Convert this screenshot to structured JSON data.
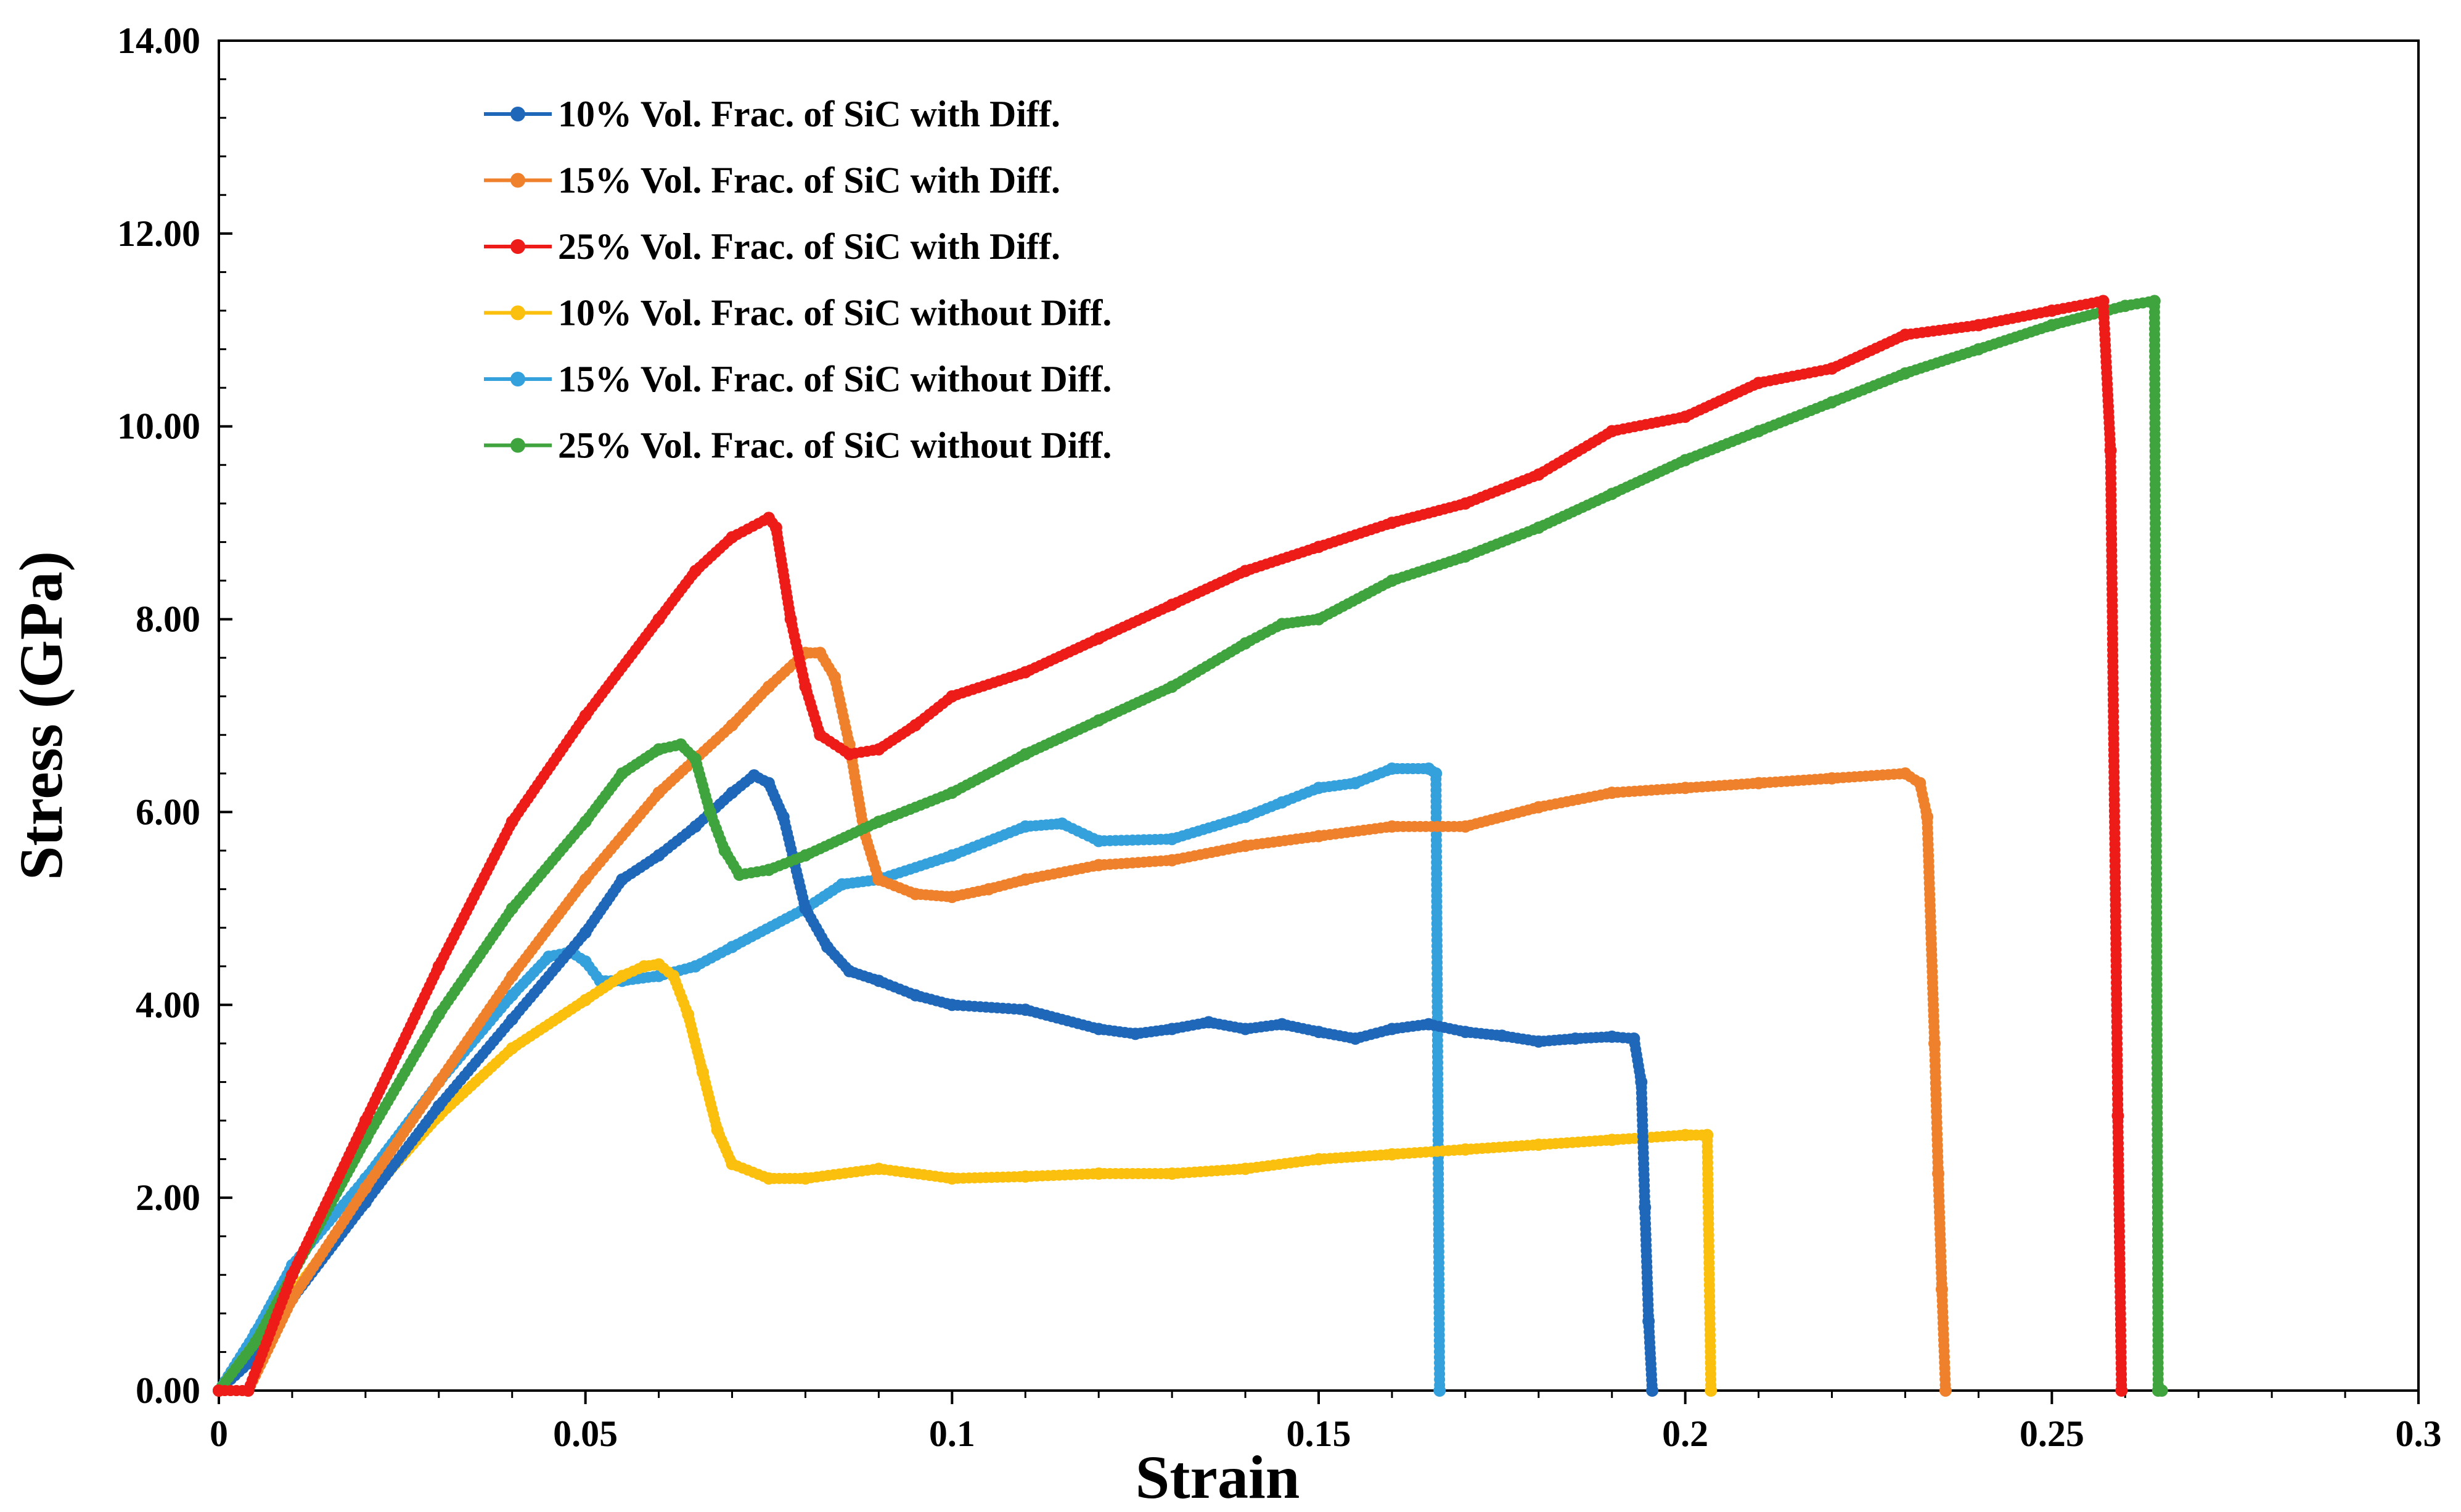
{
  "chart_data": {
    "type": "line",
    "title": "",
    "xlabel": "Strain",
    "ylabel": "Stress (GPa)",
    "xlim": [
      0,
      0.3
    ],
    "ylim": [
      0,
      14
    ],
    "x_ticks": [
      0,
      0.05,
      0.1,
      0.15,
      0.2,
      0.25,
      0.3
    ],
    "x_tick_labels": [
      "0",
      "0.05",
      "0.1",
      "0.15",
      "0.2",
      "0.25",
      "0.3"
    ],
    "y_ticks": [
      0,
      2,
      4,
      6,
      8,
      10,
      12,
      14
    ],
    "y_tick_labels": [
      "0.00",
      "2.00",
      "4.00",
      "6.00",
      "8.00",
      "10.00",
      "12.00",
      "14.00"
    ],
    "legend_position": "top-left",
    "series": [
      {
        "name": "10% Vol. Frac. of SiC with Diff.",
        "color": "#1f67b9",
        "points": [
          [
            0,
            0
          ],
          [
            0.005,
            0.35
          ],
          [
            0.01,
            0.95
          ],
          [
            0.02,
            1.95
          ],
          [
            0.03,
            2.95
          ],
          [
            0.04,
            3.85
          ],
          [
            0.05,
            4.75
          ],
          [
            0.055,
            5.3
          ],
          [
            0.06,
            5.55
          ],
          [
            0.065,
            5.85
          ],
          [
            0.07,
            6.2
          ],
          [
            0.073,
            6.38
          ],
          [
            0.075,
            6.3
          ],
          [
            0.077,
            5.95
          ],
          [
            0.08,
            5.0
          ],
          [
            0.083,
            4.6
          ],
          [
            0.086,
            4.35
          ],
          [
            0.09,
            4.25
          ],
          [
            0.095,
            4.1
          ],
          [
            0.1,
            4.0
          ],
          [
            0.11,
            3.95
          ],
          [
            0.12,
            3.75
          ],
          [
            0.125,
            3.7
          ],
          [
            0.13,
            3.75
          ],
          [
            0.135,
            3.82
          ],
          [
            0.14,
            3.75
          ],
          [
            0.145,
            3.8
          ],
          [
            0.15,
            3.72
          ],
          [
            0.155,
            3.65
          ],
          [
            0.16,
            3.75
          ],
          [
            0.165,
            3.8
          ],
          [
            0.17,
            3.72
          ],
          [
            0.175,
            3.68
          ],
          [
            0.18,
            3.62
          ],
          [
            0.185,
            3.65
          ],
          [
            0.19,
            3.67
          ],
          [
            0.193,
            3.65
          ],
          [
            0.194,
            3.2
          ],
          [
            0.1945,
            1.9
          ],
          [
            0.195,
            0.72
          ],
          [
            0.1955,
            0
          ]
        ]
      },
      {
        "name": "15% Vol. Frac. of SiC with Diff.",
        "color": "#f0812c",
        "points": [
          [
            0,
            0
          ],
          [
            0.004,
            0.0
          ],
          [
            0.01,
            0.95
          ],
          [
            0.02,
            2.1
          ],
          [
            0.03,
            3.2
          ],
          [
            0.04,
            4.3
          ],
          [
            0.05,
            5.3
          ],
          [
            0.06,
            6.2
          ],
          [
            0.07,
            6.9
          ],
          [
            0.075,
            7.3
          ],
          [
            0.08,
            7.65
          ],
          [
            0.082,
            7.65
          ],
          [
            0.084,
            7.4
          ],
          [
            0.086,
            6.7
          ],
          [
            0.088,
            5.8
          ],
          [
            0.09,
            5.3
          ],
          [
            0.095,
            5.15
          ],
          [
            0.1,
            5.12
          ],
          [
            0.105,
            5.2
          ],
          [
            0.11,
            5.3
          ],
          [
            0.12,
            5.45
          ],
          [
            0.13,
            5.5
          ],
          [
            0.14,
            5.65
          ],
          [
            0.15,
            5.75
          ],
          [
            0.16,
            5.85
          ],
          [
            0.17,
            5.85
          ],
          [
            0.18,
            6.05
          ],
          [
            0.19,
            6.2
          ],
          [
            0.2,
            6.25
          ],
          [
            0.21,
            6.3
          ],
          [
            0.22,
            6.35
          ],
          [
            0.23,
            6.4
          ],
          [
            0.232,
            6.3
          ],
          [
            0.233,
            5.95
          ],
          [
            0.234,
            3.6
          ],
          [
            0.2345,
            2.25
          ],
          [
            0.235,
            1.05
          ],
          [
            0.2355,
            0
          ]
        ]
      },
      {
        "name": "25% Vol. Frac. of SiC with Diff.",
        "color": "#ee1c18",
        "points": [
          [
            0,
            0
          ],
          [
            0.004,
            0.0
          ],
          [
            0.01,
            1.2
          ],
          [
            0.02,
            2.8
          ],
          [
            0.03,
            4.4
          ],
          [
            0.04,
            5.9
          ],
          [
            0.05,
            7.0
          ],
          [
            0.06,
            8.0
          ],
          [
            0.065,
            8.5
          ],
          [
            0.07,
            8.85
          ],
          [
            0.075,
            9.05
          ],
          [
            0.076,
            8.95
          ],
          [
            0.078,
            8.0
          ],
          [
            0.08,
            7.3
          ],
          [
            0.082,
            6.8
          ],
          [
            0.086,
            6.6
          ],
          [
            0.09,
            6.65
          ],
          [
            0.095,
            6.9
          ],
          [
            0.1,
            7.2
          ],
          [
            0.11,
            7.45
          ],
          [
            0.12,
            7.8
          ],
          [
            0.13,
            8.15
          ],
          [
            0.14,
            8.5
          ],
          [
            0.15,
            8.75
          ],
          [
            0.16,
            9.0
          ],
          [
            0.17,
            9.2
          ],
          [
            0.18,
            9.5
          ],
          [
            0.19,
            9.95
          ],
          [
            0.2,
            10.1
          ],
          [
            0.21,
            10.45
          ],
          [
            0.22,
            10.6
          ],
          [
            0.23,
            10.95
          ],
          [
            0.24,
            11.05
          ],
          [
            0.25,
            11.2
          ],
          [
            0.257,
            11.3
          ],
          [
            0.258,
            9.75
          ],
          [
            0.259,
            2.85
          ],
          [
            0.2595,
            0
          ]
        ]
      },
      {
        "name": "10% Vol. Frac. of SiC without Diff.",
        "color": "#fbbf0e",
        "points": [
          [
            0,
            0
          ],
          [
            0.01,
            1.0
          ],
          [
            0.02,
            2.0
          ],
          [
            0.03,
            2.85
          ],
          [
            0.04,
            3.55
          ],
          [
            0.05,
            4.05
          ],
          [
            0.055,
            4.3
          ],
          [
            0.058,
            4.4
          ],
          [
            0.06,
            4.42
          ],
          [
            0.062,
            4.3
          ],
          [
            0.064,
            3.9
          ],
          [
            0.066,
            3.3
          ],
          [
            0.068,
            2.7
          ],
          [
            0.07,
            2.35
          ],
          [
            0.075,
            2.2
          ],
          [
            0.08,
            2.2
          ],
          [
            0.09,
            2.3
          ],
          [
            0.1,
            2.2
          ],
          [
            0.11,
            2.22
          ],
          [
            0.12,
            2.25
          ],
          [
            0.13,
            2.25
          ],
          [
            0.14,
            2.3
          ],
          [
            0.15,
            2.4
          ],
          [
            0.16,
            2.45
          ],
          [
            0.17,
            2.5
          ],
          [
            0.18,
            2.55
          ],
          [
            0.19,
            2.6
          ],
          [
            0.2,
            2.65
          ],
          [
            0.203,
            2.65
          ],
          [
            0.2035,
            0
          ]
        ]
      },
      {
        "name": "15% Vol. Frac. of SiC without Diff.",
        "color": "#34a0dc",
        "points": [
          [
            0,
            0
          ],
          [
            0.005,
            0.6
          ],
          [
            0.01,
            1.3
          ],
          [
            0.02,
            2.2
          ],
          [
            0.03,
            3.2
          ],
          [
            0.04,
            4.1
          ],
          [
            0.045,
            4.5
          ],
          [
            0.048,
            4.55
          ],
          [
            0.05,
            4.45
          ],
          [
            0.052,
            4.25
          ],
          [
            0.055,
            4.25
          ],
          [
            0.06,
            4.3
          ],
          [
            0.065,
            4.4
          ],
          [
            0.07,
            4.6
          ],
          [
            0.08,
            5.0
          ],
          [
            0.085,
            5.25
          ],
          [
            0.09,
            5.3
          ],
          [
            0.1,
            5.55
          ],
          [
            0.11,
            5.85
          ],
          [
            0.115,
            5.88
          ],
          [
            0.12,
            5.7
          ],
          [
            0.13,
            5.72
          ],
          [
            0.14,
            5.95
          ],
          [
            0.145,
            6.1
          ],
          [
            0.15,
            6.25
          ],
          [
            0.155,
            6.3
          ],
          [
            0.16,
            6.45
          ],
          [
            0.165,
            6.45
          ],
          [
            0.166,
            6.4
          ],
          [
            0.1665,
            0
          ]
        ]
      },
      {
        "name": "25% Vol. Frac. of SiC without Diff.",
        "color": "#3fa43e",
        "points": [
          [
            0,
            0
          ],
          [
            0.005,
            0.5
          ],
          [
            0.01,
            1.2
          ],
          [
            0.02,
            2.6
          ],
          [
            0.03,
            3.9
          ],
          [
            0.04,
            5.0
          ],
          [
            0.05,
            5.9
          ],
          [
            0.055,
            6.4
          ],
          [
            0.06,
            6.65
          ],
          [
            0.063,
            6.7
          ],
          [
            0.065,
            6.55
          ],
          [
            0.067,
            6.0
          ],
          [
            0.069,
            5.6
          ],
          [
            0.071,
            5.35
          ],
          [
            0.075,
            5.4
          ],
          [
            0.08,
            5.55
          ],
          [
            0.09,
            5.9
          ],
          [
            0.1,
            6.2
          ],
          [
            0.11,
            6.6
          ],
          [
            0.12,
            6.95
          ],
          [
            0.13,
            7.3
          ],
          [
            0.14,
            7.75
          ],
          [
            0.145,
            7.95
          ],
          [
            0.15,
            8.0
          ],
          [
            0.16,
            8.4
          ],
          [
            0.17,
            8.65
          ],
          [
            0.18,
            8.95
          ],
          [
            0.19,
            9.3
          ],
          [
            0.2,
            9.65
          ],
          [
            0.21,
            9.95
          ],
          [
            0.22,
            10.25
          ],
          [
            0.23,
            10.55
          ],
          [
            0.24,
            10.8
          ],
          [
            0.25,
            11.05
          ],
          [
            0.26,
            11.25
          ],
          [
            0.264,
            11.3
          ],
          [
            0.2645,
            0
          ],
          [
            0.265,
            0
          ]
        ]
      }
    ]
  }
}
